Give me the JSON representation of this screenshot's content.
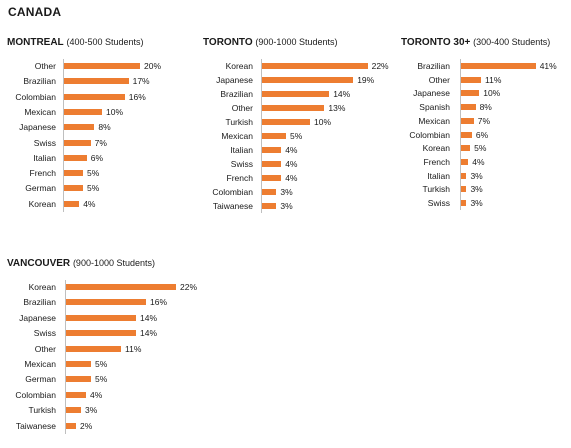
{
  "page": {
    "country": "CANADA"
  },
  "colors": {
    "bar": "#ed7d31",
    "axis": "#bfbfbf"
  },
  "chart_data": [
    {
      "type": "bar",
      "orientation": "horizontal",
      "title": "MONTREAL",
      "subtitle": "(400-500 Students)",
      "categories": [
        "Other",
        "Brazilian",
        "Colombian",
        "Mexican",
        "Japanese",
        "Swiss",
        "Italian",
        "French",
        "German",
        "Korean"
      ],
      "values": [
        20,
        17,
        16,
        10,
        8,
        7,
        6,
        5,
        5,
        4
      ],
      "value_suffix": "%",
      "xlim": [
        0,
        25
      ],
      "grid": false
    },
    {
      "type": "bar",
      "orientation": "horizontal",
      "title": "TORONTO",
      "subtitle": "(900-1000 Students)",
      "categories": [
        "Korean",
        "Japanese",
        "Brazilian",
        "Other",
        "Turkish",
        "Mexican",
        "Italian",
        "Swiss",
        "French",
        "Colombian",
        "Taiwanese"
      ],
      "values": [
        22,
        19,
        14,
        13,
        10,
        5,
        4,
        4,
        4,
        3,
        3
      ],
      "value_suffix": "%",
      "xlim": [
        0,
        25
      ],
      "grid": false
    },
    {
      "type": "bar",
      "orientation": "horizontal",
      "title": "TORONTO 30+",
      "subtitle": "(300-400 Students)",
      "categories": [
        "Brazilian",
        "Other",
        "Japanese",
        "Spanish",
        "Mexican",
        "Colombian",
        "Korean",
        "French",
        "Italian",
        "Turkish",
        "Swiss"
      ],
      "values": [
        41,
        11,
        10,
        8,
        7,
        6,
        5,
        4,
        3,
        3,
        3
      ],
      "value_suffix": "%",
      "xlim": [
        0,
        45
      ],
      "grid": false
    },
    {
      "type": "bar",
      "orientation": "horizontal",
      "title": "VANCOUVER",
      "subtitle": "(900-1000 Students)",
      "categories": [
        "Korean",
        "Brazilian",
        "Japanese",
        "Swiss",
        "Other",
        "Mexican",
        "German",
        "Colombian",
        "Turkish",
        "Taiwanese"
      ],
      "values": [
        22,
        16,
        14,
        14,
        11,
        5,
        5,
        4,
        3,
        2
      ],
      "value_suffix": "%",
      "xlim": [
        0,
        25
      ],
      "grid": false
    }
  ]
}
